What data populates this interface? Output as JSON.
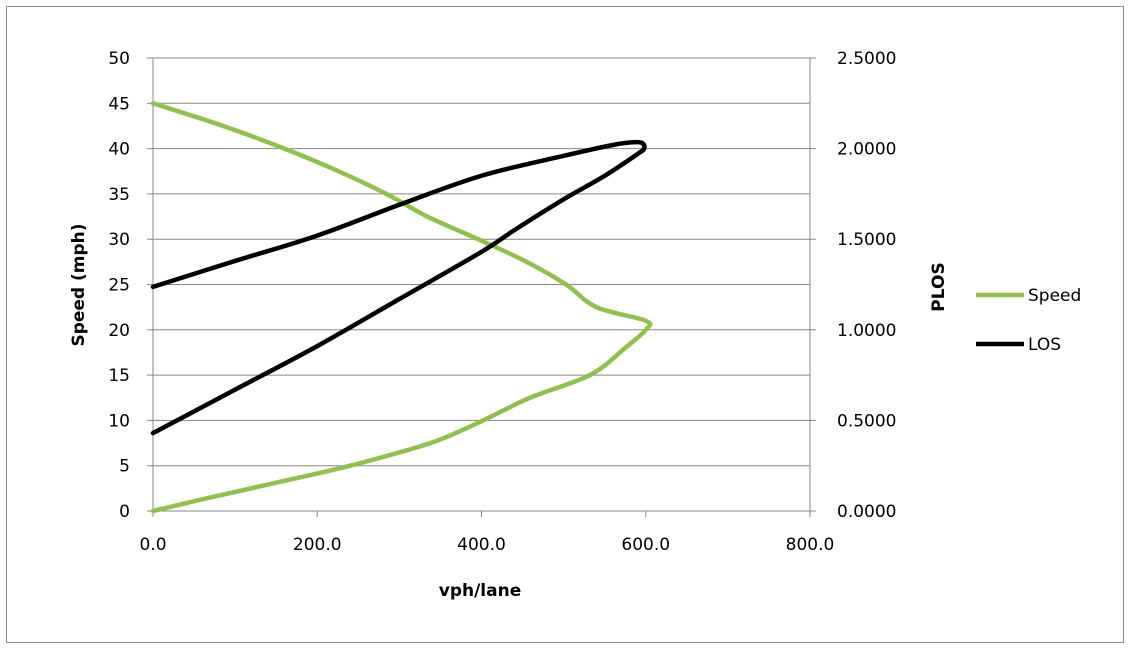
{
  "chart_data": {
    "type": "line",
    "title": "",
    "xlabel": "vph/lane",
    "ylabel": "Speed (mph)",
    "y2label": "PLOS",
    "xlim": [
      0,
      800
    ],
    "ylim": [
      0,
      50
    ],
    "y2lim": [
      0,
      2.5
    ],
    "x_ticks": [
      "0.0",
      "200.0",
      "400.0",
      "600.0",
      "800.0"
    ],
    "y_ticks": [
      "0",
      "5",
      "10",
      "15",
      "20",
      "25",
      "30",
      "35",
      "40",
      "45",
      "50"
    ],
    "y2_ticks": [
      "0.0000",
      "0.5000",
      "1.0000",
      "1.5000",
      "2.0000",
      "2.5000"
    ],
    "grid": true,
    "legend_position": "right",
    "series": [
      {
        "name": "Speed",
        "axis": "left",
        "color": "#92c050",
        "points": [
          [
            0,
            45
          ],
          [
            85.5,
            42.5
          ],
          [
            160,
            40
          ],
          [
            226,
            37.5
          ],
          [
            284,
            35
          ],
          [
            334,
            32.5
          ],
          [
            396,
            30
          ],
          [
            455,
            27.5
          ],
          [
            503,
            25
          ],
          [
            540,
            22.5
          ],
          [
            600,
            21
          ],
          [
            600,
            20
          ],
          [
            575,
            18
          ],
          [
            532,
            15
          ],
          [
            459,
            12.5
          ],
          [
            402,
            10
          ],
          [
            338,
            7.5
          ],
          [
            240,
            5
          ],
          [
            160,
            3.33
          ],
          [
            70,
            1.5
          ],
          [
            0,
            0
          ]
        ]
      },
      {
        "name": "LOS",
        "axis": "right",
        "color": "#000000",
        "points": [
          [
            0,
            1.237
          ],
          [
            100,
            1.38
          ],
          [
            200,
            1.52
          ],
          [
            300,
            1.69
          ],
          [
            400,
            1.85
          ],
          [
            500,
            1.96
          ],
          [
            560,
            2.02
          ],
          [
            585,
            2.035
          ],
          [
            596,
            2.03
          ],
          [
            598,
            2.0
          ],
          [
            590,
            1.97
          ],
          [
            550,
            1.85
          ],
          [
            500,
            1.72
          ],
          [
            440,
            1.55
          ],
          [
            400,
            1.43
          ],
          [
            300,
            1.17
          ],
          [
            200,
            0.91
          ],
          [
            100,
            0.67
          ],
          [
            0,
            0.43
          ]
        ]
      }
    ]
  }
}
